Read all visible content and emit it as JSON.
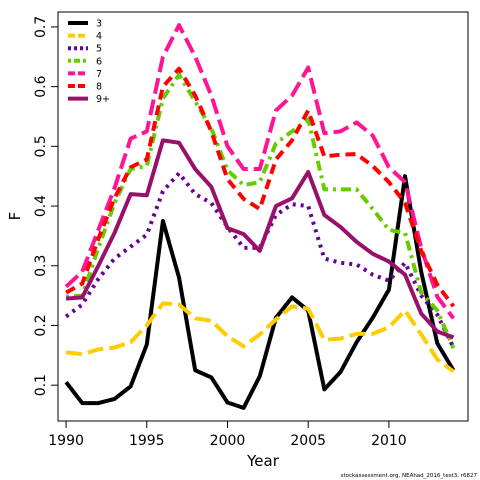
{
  "chart_data": {
    "type": "line",
    "xlabel": "Year",
    "ylabel": "F",
    "xlim": [
      1989.5,
      2014.9
    ],
    "ylim": [
      0.04,
      0.725
    ],
    "xticks": [
      1990,
      1995,
      2000,
      2005,
      2010
    ],
    "yticks": [
      0.1,
      0.2,
      0.3,
      0.4,
      0.5,
      0.6,
      0.7
    ],
    "ytick_labels": [
      "0.1",
      "0.2",
      "0.3",
      "0.4",
      "0.5",
      "0.6",
      "0.7"
    ],
    "legend_position": "top-left",
    "caption": "stockassessment.org, NEAhad_2016_test3, r6827",
    "x": [
      1990,
      1991,
      1992,
      1993,
      1994,
      1995,
      1996,
      1997,
      1998,
      1999,
      2000,
      2001,
      2002,
      2003,
      2004,
      2005,
      2006,
      2007,
      2008,
      2009,
      2010,
      2011,
      2012,
      2013,
      2014
    ],
    "series": [
      {
        "name": "3",
        "color": "#000000",
        "dash": "solid",
        "values": [
          0.105,
          0.07,
          0.07,
          0.077,
          0.098,
          0.168,
          0.375,
          0.28,
          0.125,
          0.113,
          0.071,
          0.062,
          0.115,
          0.213,
          0.247,
          0.225,
          0.093,
          0.122,
          0.172,
          0.213,
          0.26,
          0.45,
          0.29,
          0.17,
          0.125
        ]
      },
      {
        "name": "4",
        "color": "#FFCC00",
        "dash": "longdash",
        "values": [
          0.155,
          0.152,
          0.16,
          0.163,
          0.172,
          0.2,
          0.237,
          0.235,
          0.212,
          0.208,
          0.182,
          0.165,
          0.185,
          0.21,
          0.232,
          0.228,
          0.176,
          0.178,
          0.186,
          0.186,
          0.197,
          0.225,
          0.185,
          0.143,
          0.123
        ]
      },
      {
        "name": "5",
        "color": "#660099",
        "dash": "dotted",
        "values": [
          0.215,
          0.235,
          0.278,
          0.312,
          0.332,
          0.352,
          0.425,
          0.455,
          0.42,
          0.405,
          0.365,
          0.33,
          0.33,
          0.385,
          0.403,
          0.4,
          0.312,
          0.305,
          0.302,
          0.285,
          0.275,
          0.305,
          0.25,
          0.218,
          0.163
        ]
      },
      {
        "name": "6",
        "color": "#66CC00",
        "dash": "dashdot",
        "values": [
          0.248,
          0.25,
          0.33,
          0.405,
          0.462,
          0.467,
          0.58,
          0.62,
          0.575,
          0.53,
          0.46,
          0.435,
          0.44,
          0.505,
          0.525,
          0.545,
          0.428,
          0.428,
          0.428,
          0.395,
          0.36,
          0.355,
          0.255,
          0.225,
          0.162
        ]
      },
      {
        "name": "7",
        "color": "#FF1493",
        "dash": "longdash",
        "values": [
          0.265,
          0.29,
          0.36,
          0.43,
          0.513,
          0.525,
          0.65,
          0.703,
          0.65,
          0.585,
          0.5,
          0.462,
          0.462,
          0.56,
          0.585,
          0.632,
          0.522,
          0.525,
          0.54,
          0.518,
          0.465,
          0.44,
          0.33,
          0.248,
          0.212
        ]
      },
      {
        "name": "8",
        "color": "#FF0000",
        "dash": "dashed",
        "values": [
          0.255,
          0.27,
          0.345,
          0.413,
          0.465,
          0.478,
          0.6,
          0.63,
          0.585,
          0.525,
          0.445,
          0.412,
          0.395,
          0.478,
          0.51,
          0.56,
          0.483,
          0.486,
          0.487,
          0.467,
          0.44,
          0.405,
          0.325,
          0.268,
          0.232
        ]
      },
      {
        "name": "9+",
        "color": "#99106B",
        "dash": "solid",
        "values": [
          0.245,
          0.247,
          0.3,
          0.355,
          0.42,
          0.418,
          0.51,
          0.506,
          0.462,
          0.432,
          0.363,
          0.353,
          0.325,
          0.4,
          0.413,
          0.457,
          0.385,
          0.365,
          0.34,
          0.32,
          0.307,
          0.285,
          0.22,
          0.19,
          0.18
        ]
      }
    ]
  }
}
